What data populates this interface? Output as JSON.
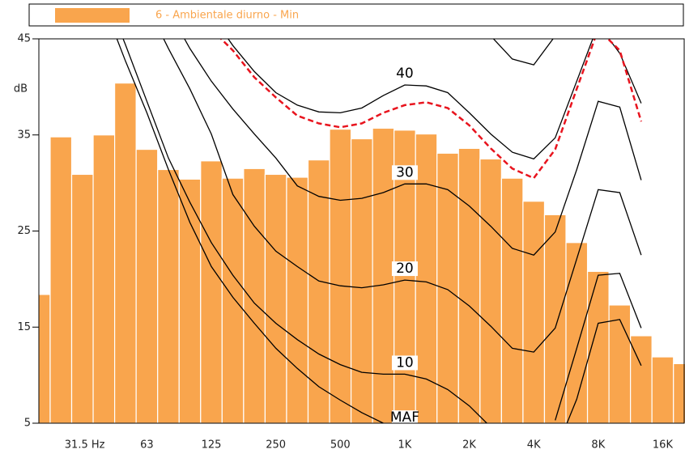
{
  "chart_data": {
    "type": "bar",
    "ylabel": "dB",
    "categories": [
      null,
      null,
      "31.5 Hz",
      null,
      null,
      "63",
      null,
      null,
      "125",
      null,
      null,
      "250",
      null,
      null,
      "500",
      null,
      null,
      "1K",
      null,
      null,
      "2K",
      null,
      null,
      "4K",
      null,
      null,
      "8K",
      null,
      null,
      "16K",
      null
    ],
    "ylim": [
      5,
      45
    ],
    "yticks": [
      5,
      15,
      25,
      35,
      45
    ],
    "legend": "top",
    "series": [
      {
        "name": "6 - Ambientale diurno - Min",
        "type": "bar",
        "color": "#f9a54d",
        "values": [
          18.4,
          34.8,
          30.9,
          35.0,
          40.4,
          33.5,
          31.4,
          30.4,
          32.3,
          30.5,
          31.5,
          30.9,
          30.6,
          32.4,
          35.6,
          34.6,
          35.7,
          35.5,
          35.1,
          33.1,
          33.6,
          32.5,
          30.5,
          28.1,
          26.7,
          23.8,
          20.8,
          17.3,
          14.1,
          11.9,
          11.2
        ]
      },
      {
        "name": "40",
        "type": "line",
        "color": "#000000",
        "values": [
          null,
          null,
          null,
          null,
          null,
          null,
          null,
          null,
          47.5,
          44.3,
          41.6,
          39.4,
          38.1,
          37.4,
          37.3,
          37.8,
          39.1,
          40.2,
          40.1,
          39.4,
          37.3,
          35.1,
          33.2,
          32.5,
          34.7,
          40.6,
          46.5,
          43.5,
          38.3,
          null,
          null
        ]
      },
      {
        "type": "line",
        "color": "#e8141e",
        "dashed": true,
        "values": [
          null,
          null,
          null,
          null,
          null,
          null,
          null,
          null,
          46.0,
          43.8,
          41.0,
          38.9,
          37.0,
          36.2,
          35.8,
          36.2,
          37.3,
          38.1,
          38.4,
          37.8,
          36.0,
          33.6,
          31.5,
          30.5,
          33.5,
          39.8,
          46.0,
          43.8,
          36.4,
          null,
          null
        ]
      },
      {
        "type": "line",
        "color": "#000000",
        "values": [
          null,
          null,
          null,
          null,
          null,
          null,
          null,
          null,
          null,
          null,
          null,
          null,
          null,
          null,
          null,
          null,
          null,
          null,
          null,
          null,
          null,
          45.3,
          42.9,
          42.3,
          45.3,
          null,
          null,
          null,
          null,
          null,
          null
        ]
      },
      {
        "name": "30",
        "type": "line",
        "color": "#000000",
        "values": [
          null,
          null,
          null,
          null,
          null,
          null,
          48.0,
          44.0,
          40.6,
          37.7,
          35.1,
          32.6,
          29.7,
          28.6,
          28.2,
          28.4,
          29.0,
          29.9,
          29.9,
          29.3,
          27.6,
          25.5,
          23.2,
          22.5,
          24.9,
          31.4,
          38.5,
          37.9,
          30.3,
          null,
          null
        ]
      },
      {
        "name": "20",
        "type": "line",
        "color": "#000000",
        "values": [
          null,
          null,
          null,
          null,
          null,
          48.5,
          44.0,
          39.8,
          35.1,
          28.8,
          25.5,
          22.9,
          21.3,
          19.8,
          19.3,
          19.1,
          19.4,
          19.9,
          19.7,
          18.9,
          17.2,
          15.1,
          12.8,
          12.4,
          14.9,
          22.1,
          29.3,
          29.0,
          22.5,
          null,
          null
        ]
      },
      {
        "name": "10",
        "type": "line",
        "color": "#000000",
        "values": [
          null,
          null,
          null,
          50.0,
          44.4,
          38.5,
          32.6,
          28.0,
          23.8,
          20.4,
          17.5,
          15.4,
          13.7,
          12.2,
          11.1,
          10.3,
          10.1,
          10.1,
          9.6,
          8.5,
          6.8,
          4.6,
          null,
          null,
          5.3,
          12.8,
          20.4,
          20.6,
          14.9,
          null,
          null
        ]
      },
      {
        "name": "MAF",
        "type": "line",
        "color": "#000000",
        "values": [
          null,
          null,
          null,
          48.5,
          42.7,
          37.3,
          31.4,
          25.9,
          21.3,
          18.1,
          15.4,
          12.8,
          10.7,
          8.8,
          7.4,
          6.1,
          5.0,
          4.4,
          null,
          null,
          null,
          null,
          null,
          null,
          2.0,
          7.5,
          15.4,
          15.8,
          11.0,
          null,
          null
        ]
      }
    ]
  }
}
